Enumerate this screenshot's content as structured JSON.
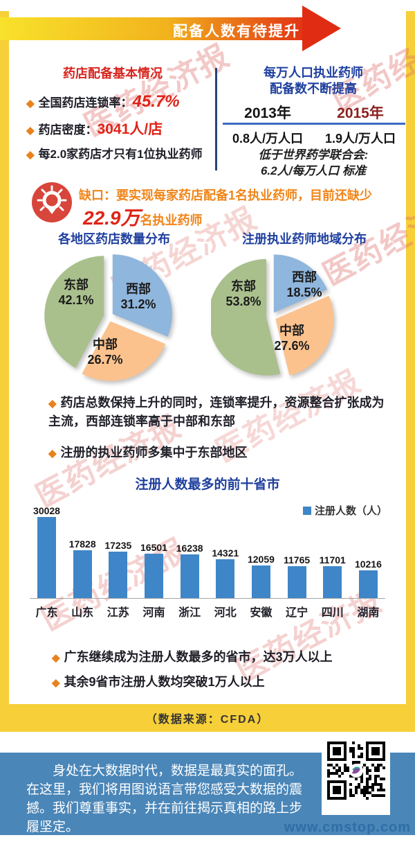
{
  "banner": {
    "title": "配备人数有待提升"
  },
  "icons": {
    "diamond": "◆",
    "legend_square": "■"
  },
  "watermark": {
    "seal_text": "医药经济报",
    "site": "www.cmstop.com"
  },
  "basics": {
    "title": "药店配备基本情况",
    "bullet1_label": "全国药店连锁率：",
    "bullet1_value": "45.7%",
    "bullet2_label": "药店密度：",
    "bullet2_value": "3041人/店",
    "bullet3": "每2.0家药店才只有1位执业药师"
  },
  "per_capita": {
    "title_line1": "每万人口执业药师",
    "title_line2": "配备数不断提高",
    "col1_year": "2013年",
    "col2_year": "2015年",
    "col1_value": "0.8人/万人口",
    "col2_value": "1.9人/万人口",
    "note_line1": "低于世界药学联合会:",
    "note_line2": "6.2人/每万人口 标准"
  },
  "gap": {
    "line1": "缺口：要实现每家药店配备1名执业药师，目前还缺少",
    "highlight": "22.9万",
    "suffix": "名执业药师"
  },
  "findings": {
    "p1": "药店总数保持上升的同时，连锁率提升，资源整合扩张成为主流，西部连锁率高于中部和东部",
    "p2": "注册的执业药师多集中于东部地区"
  },
  "notes": {
    "n1": "广东继续成为注册人数最多的省市，达3万人以上",
    "n2": "其余9省市注册人数均突破1万人以上"
  },
  "source": "（数据来源：CFDA）",
  "footer": {
    "text": "身处在大数据时代，数据是最真实的面孔。在这里，我们将用图说语言带您感受大数据的震撼。我们尊重事实，并在前往揭示真相的路上步履坚定。"
  },
  "colors": {
    "frame_yellow": "#f6cf39",
    "footer_blue": "#4a86b8",
    "title_blue": "#1f3f9e",
    "red": "#e02317",
    "orange": "#f08519",
    "dark_red": "#8c1f1f",
    "bar_blue": "#3e86c8",
    "pie_east_green": "#a9c08d",
    "pie_west_blue": "#8fb6dd",
    "pie_central_orange": "#fbc28e"
  },
  "chart_data": [
    {
      "type": "pie",
      "title": "各地区药店数量分布",
      "start": "top",
      "direction": "clockwise",
      "slices": [
        {
          "label": "西部",
          "value": 31.2,
          "pct": "31.2%",
          "color": "#8fb6dd"
        },
        {
          "label": "中部",
          "value": 26.7,
          "pct": "26.7%",
          "color": "#fbc28e"
        },
        {
          "label": "东部",
          "value": 42.1,
          "pct": "42.1%",
          "color": "#a9c08d"
        }
      ]
    },
    {
      "type": "pie",
      "title": "注册执业药师地域分布",
      "start": "top",
      "direction": "clockwise",
      "slices": [
        {
          "label": "西部",
          "value": 18.5,
          "pct": "18.5%",
          "color": "#8fb6dd"
        },
        {
          "label": "中部",
          "value": 27.6,
          "pct": "27.6%",
          "color": "#fbc28e"
        },
        {
          "label": "东部",
          "value": 53.8,
          "pct": "53.8%",
          "color": "#a9c08d"
        }
      ]
    },
    {
      "type": "bar",
      "title": "注册人数最多的前十省市",
      "legend": "注册人数（人）",
      "bar_color": "#3e86c8",
      "categories": [
        "广东",
        "山东",
        "江苏",
        "河南",
        "浙江",
        "河北",
        "安徽",
        "辽宁",
        "四川",
        "湖南"
      ],
      "values": [
        30028,
        17828,
        17235,
        16501,
        16238,
        14321,
        12059,
        11765,
        11701,
        10216
      ],
      "ylim": [
        0,
        32000
      ],
      "grid": false,
      "legend_position": "top-right"
    }
  ]
}
